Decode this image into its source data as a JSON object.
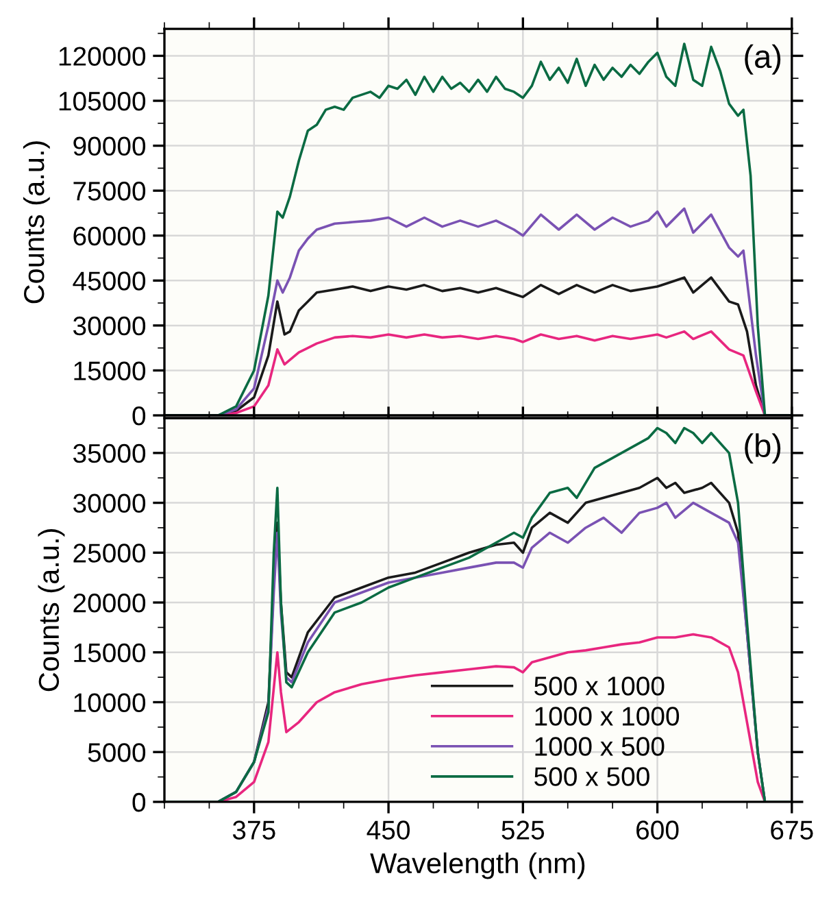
{
  "chart_data": [
    {
      "type": "line",
      "ylabel": "Counts (a.u.)",
      "annotations": [
        "(a)"
      ],
      "xlim": [
        325,
        675
      ],
      "xticks": [
        375,
        450,
        525,
        600,
        675
      ],
      "ylim": [
        0,
        129000
      ],
      "yticks": [
        0,
        15000,
        30000,
        45000,
        60000,
        75000,
        90000,
        105000,
        120000
      ],
      "grid": true,
      "tick_labels": "y",
      "legend": false,
      "series": [
        {
          "color": "#1a1a1a",
          "x": [
            325,
            355,
            365,
            375,
            383,
            388,
            392,
            395,
            400,
            405,
            410,
            420,
            430,
            440,
            450,
            460,
            470,
            480,
            490,
            500,
            510,
            520,
            525,
            535,
            545,
            555,
            565,
            575,
            585,
            595,
            600,
            605,
            615,
            620,
            630,
            640,
            645,
            650,
            655,
            660,
            675
          ],
          "values": [
            0,
            0,
            1500,
            6000,
            20000,
            38000,
            27000,
            28000,
            35000,
            38000,
            41000,
            42000,
            43000,
            41500,
            43000,
            42000,
            43500,
            41500,
            42500,
            41000,
            42500,
            40500,
            39500,
            43500,
            40500,
            43500,
            41000,
            43500,
            41500,
            42500,
            43000,
            44000,
            46000,
            41000,
            46000,
            38000,
            37000,
            28000,
            10000,
            0,
            0
          ]
        },
        {
          "color": "#e8267f",
          "x": [
            325,
            355,
            365,
            375,
            383,
            388,
            392,
            400,
            410,
            420,
            430,
            440,
            450,
            460,
            470,
            480,
            490,
            500,
            510,
            520,
            525,
            535,
            545,
            555,
            565,
            575,
            585,
            595,
            600,
            605,
            615,
            620,
            630,
            640,
            648,
            655,
            660,
            675
          ],
          "values": [
            0,
            0,
            800,
            3000,
            10000,
            22000,
            17000,
            21000,
            24000,
            26000,
            26500,
            26000,
            27000,
            26000,
            27000,
            26000,
            26500,
            25500,
            26500,
            25500,
            24500,
            27000,
            25500,
            26500,
            25000,
            26500,
            25500,
            26500,
            27000,
            26000,
            28000,
            25500,
            28000,
            22000,
            20000,
            8000,
            0,
            0
          ]
        },
        {
          "color": "#7a52b3",
          "x": [
            325,
            355,
            365,
            375,
            383,
            388,
            391,
            395,
            400,
            405,
            410,
            420,
            430,
            440,
            450,
            460,
            470,
            480,
            490,
            500,
            510,
            520,
            525,
            535,
            545,
            555,
            565,
            575,
            585,
            595,
            600,
            605,
            615,
            620,
            630,
            640,
            645,
            648,
            655,
            660,
            675
          ],
          "values": [
            0,
            0,
            2000,
            9000,
            30000,
            45000,
            41000,
            46000,
            55000,
            59000,
            62000,
            64000,
            64500,
            65000,
            66000,
            63000,
            66000,
            63000,
            65000,
            63000,
            65000,
            62000,
            60000,
            67000,
            62000,
            67000,
            62000,
            66000,
            63000,
            65000,
            68000,
            63000,
            69000,
            61000,
            67000,
            56000,
            53000,
            55000,
            20000,
            0,
            0
          ]
        },
        {
          "color": "#0b6b43",
          "x": [
            325,
            355,
            365,
            375,
            383,
            388,
            391,
            395,
            400,
            405,
            410,
            415,
            420,
            425,
            430,
            440,
            445,
            450,
            455,
            460,
            465,
            470,
            475,
            480,
            485,
            490,
            495,
            500,
            505,
            510,
            515,
            520,
            525,
            530,
            535,
            540,
            545,
            550,
            555,
            560,
            565,
            570,
            575,
            580,
            585,
            590,
            595,
            600,
            605,
            610,
            615,
            620,
            625,
            630,
            635,
            640,
            645,
            648,
            652,
            656,
            660,
            675
          ],
          "values": [
            0,
            0,
            3000,
            15000,
            40000,
            68000,
            66000,
            73000,
            85000,
            95000,
            97000,
            102000,
            103000,
            102000,
            106000,
            108000,
            106000,
            110000,
            109000,
            112000,
            107000,
            113000,
            108000,
            113000,
            109000,
            111000,
            108000,
            112000,
            108000,
            113000,
            109000,
            108000,
            106000,
            110000,
            118000,
            112000,
            116000,
            111000,
            119000,
            110000,
            117000,
            112000,
            116000,
            113000,
            117000,
            114000,
            118000,
            121000,
            113000,
            110000,
            124000,
            112000,
            110000,
            123000,
            115000,
            104000,
            100000,
            102000,
            80000,
            30000,
            0,
            0
          ]
        }
      ]
    },
    {
      "type": "line",
      "xlabel": "Wavelength (nm)",
      "ylabel": "Counts (a.u.)",
      "annotations": [
        "(b)"
      ],
      "xlim": [
        325,
        675
      ],
      "xticks": [
        375,
        450,
        525,
        600,
        675
      ],
      "ylim": [
        0,
        38500
      ],
      "yticks": [
        0,
        5000,
        10000,
        15000,
        20000,
        25000,
        30000,
        35000
      ],
      "grid": true,
      "legend": "bottom right",
      "series": [
        {
          "name": "500 x 1000",
          "color": "#1a1a1a",
          "x": [
            325,
            355,
            365,
            375,
            383,
            386,
            388,
            390,
            393,
            396,
            405,
            420,
            435,
            450,
            465,
            480,
            495,
            510,
            520,
            525,
            530,
            540,
            550,
            560,
            570,
            580,
            590,
            600,
            605,
            610,
            615,
            625,
            630,
            640,
            645,
            650,
            656,
            660,
            675
          ],
          "values": [
            0,
            0,
            1000,
            4000,
            10000,
            22000,
            28000,
            20000,
            13000,
            12500,
            17000,
            20500,
            21500,
            22500,
            23000,
            24000,
            25000,
            25800,
            26000,
            25000,
            27500,
            29000,
            28000,
            30000,
            30500,
            31000,
            31500,
            32500,
            31500,
            32000,
            31000,
            31500,
            32000,
            30000,
            27000,
            17000,
            5000,
            0,
            0
          ]
        },
        {
          "name": "1000 x 1000",
          "color": "#e8267f",
          "x": [
            325,
            355,
            365,
            375,
            383,
            388,
            390,
            393,
            400,
            410,
            420,
            435,
            450,
            465,
            480,
            495,
            510,
            520,
            525,
            530,
            540,
            550,
            560,
            570,
            580,
            590,
            600,
            610,
            620,
            630,
            640,
            645,
            650,
            656,
            660,
            675
          ],
          "values": [
            0,
            0,
            500,
            2000,
            6000,
            15000,
            11000,
            7000,
            8000,
            10000,
            11000,
            11800,
            12300,
            12700,
            13000,
            13300,
            13600,
            13500,
            13000,
            14000,
            14500,
            15000,
            15200,
            15500,
            15800,
            16000,
            16500,
            16500,
            16800,
            16500,
            15500,
            13000,
            8000,
            2000,
            0,
            0
          ]
        },
        {
          "name": "1000 x 500",
          "color": "#7a52b3",
          "x": [
            325,
            355,
            365,
            375,
            383,
            386,
            388,
            390,
            393,
            396,
            405,
            420,
            435,
            450,
            465,
            480,
            495,
            510,
            520,
            525,
            530,
            540,
            550,
            560,
            570,
            580,
            590,
            600,
            605,
            610,
            620,
            630,
            640,
            645,
            650,
            656,
            660,
            675
          ],
          "values": [
            0,
            0,
            1000,
            4000,
            9500,
            21000,
            27000,
            19000,
            12500,
            12000,
            16000,
            20000,
            21000,
            22000,
            22500,
            23000,
            23500,
            24000,
            24000,
            23500,
            25500,
            27000,
            26000,
            27500,
            28500,
            27000,
            29000,
            29500,
            30000,
            28500,
            30000,
            29000,
            28000,
            26000,
            17000,
            5000,
            0,
            0
          ]
        },
        {
          "name": "500 x 500",
          "color": "#0b6b43",
          "x": [
            325,
            355,
            365,
            375,
            383,
            386,
            388,
            390,
            393,
            396,
            405,
            420,
            435,
            450,
            465,
            480,
            495,
            510,
            520,
            525,
            530,
            540,
            550,
            555,
            565,
            575,
            585,
            595,
            600,
            605,
            610,
            615,
            620,
            625,
            630,
            640,
            645,
            650,
            656,
            660,
            675
          ],
          "values": [
            0,
            0,
            1000,
            4000,
            9000,
            25000,
            31500,
            20000,
            12000,
            11500,
            15000,
            19000,
            20000,
            21500,
            22500,
            23500,
            24500,
            26000,
            27000,
            26500,
            28500,
            31000,
            31500,
            30500,
            33500,
            34500,
            35500,
            36500,
            37500,
            37000,
            36000,
            37500,
            37000,
            36000,
            37000,
            35000,
            30000,
            18000,
            5000,
            0,
            0
          ]
        }
      ]
    }
  ]
}
